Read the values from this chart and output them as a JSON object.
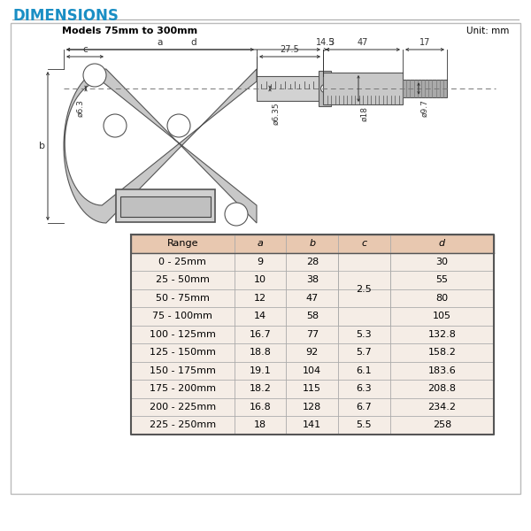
{
  "title": "DIMENSIONS",
  "title_color": "#1a8ec4",
  "subtitle": "Models 75mm to 300mm",
  "unit_text": "Unit: mm",
  "bg_color": "#ffffff",
  "border_color": "#cccccc",
  "table_header_bg": "#e8c8b0",
  "table_row_bg": "#f5ede6",
  "table_border": "#999999",
  "table_headers": [
    "Range",
    "a",
    "b",
    "c",
    "d"
  ],
  "table_rows": [
    [
      "0 - 25mm",
      "9",
      "28",
      "",
      "30"
    ],
    [
      "25 - 50mm",
      "10",
      "38",
      "2.5",
      "55"
    ],
    [
      "50 - 75mm",
      "12",
      "47",
      "",
      "80"
    ],
    [
      "75 - 100mm",
      "14",
      "58",
      "",
      "105"
    ],
    [
      "100 - 125mm",
      "16.7",
      "77",
      "5.3",
      "132.8"
    ],
    [
      "125 - 150mm",
      "18.8",
      "92",
      "5.7",
      "158.2"
    ],
    [
      "150 - 175mm",
      "19.1",
      "104",
      "6.1",
      "183.6"
    ],
    [
      "175 - 200mm",
      "18.2",
      "115",
      "6.3",
      "208.8"
    ],
    [
      "200 - 225mm",
      "16.8",
      "128",
      "6.7",
      "234.2"
    ],
    [
      "225 - 250mm",
      "18",
      "141",
      "5.5",
      "258"
    ]
  ],
  "c_merged_value": "2.5",
  "frame_color": "#c8c8c8",
  "frame_edge": "#555555",
  "dim_color": "#333333"
}
